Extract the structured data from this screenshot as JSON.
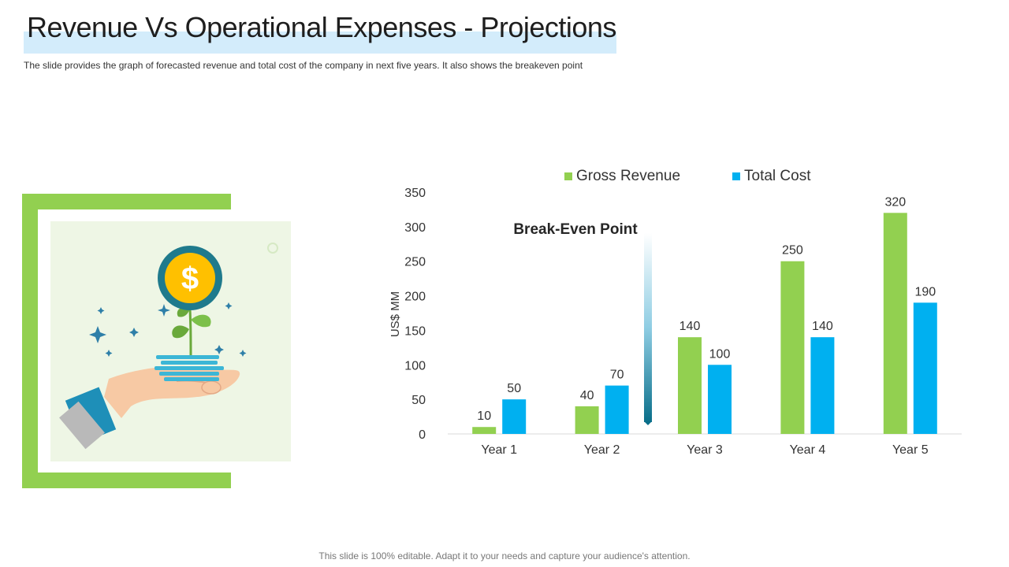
{
  "slide": {
    "title": "Revenue Vs Operational Expenses - Projections",
    "subtitle": "The slide provides  the graph  of forecasted  revenue  and total cost of the company  in next five  years.  It also shows the breakeven  point",
    "footer": "This slide is 100% editable. Adapt it to your needs and capture your audience's attention."
  },
  "illustration": {
    "icons": [
      "hand-icon",
      "plant-icon",
      "dollar-coin-icon",
      "money-stack-icon",
      "sparkle-icon"
    ],
    "colors": {
      "frame": "#92d050",
      "panel": "#eef6e5",
      "coin": "#ffc000",
      "coin_ring": "#1f7a8c",
      "sleeve": "#1e8fb8"
    }
  },
  "chart_data": {
    "type": "bar",
    "categories": [
      "Year 1",
      "Year 2",
      "Year 3",
      "Year 4",
      "Year 5"
    ],
    "series": [
      {
        "name": "Gross Revenue",
        "values": [
          10,
          40,
          140,
          250,
          320
        ],
        "color": "#92d050"
      },
      {
        "name": "Total Cost",
        "values": [
          50,
          70,
          100,
          140,
          190
        ],
        "color": "#00b0f0"
      }
    ],
    "ylabel": "US$ MM",
    "ylim": [
      0,
      350
    ],
    "yticks": [
      0,
      50,
      100,
      150,
      200,
      250,
      300,
      350
    ],
    "legend": "top",
    "grid": false,
    "annotation": {
      "text": "Break-Even Point",
      "between": [
        "Year 2",
        "Year 3"
      ]
    }
  }
}
